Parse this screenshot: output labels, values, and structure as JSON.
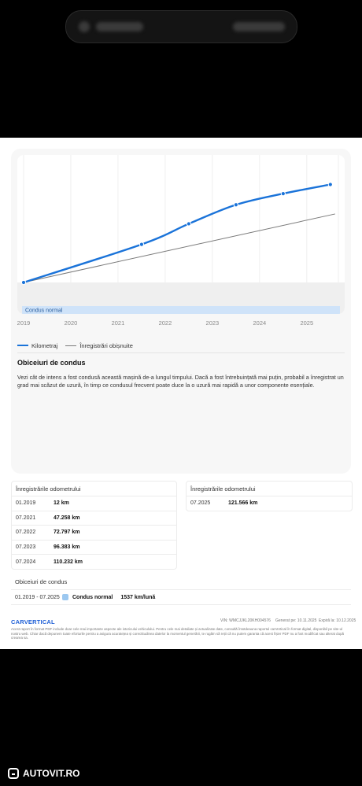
{
  "colors": {
    "mileage_line": "#1a73d9",
    "normal_line": "#7a7a7a",
    "normal_band": "#cfe3f9",
    "band_fill": "#efefef",
    "swatch_normal": "#9cc8f0"
  },
  "icons": {
    "watermark": "autovit-logo-icon"
  },
  "chart_data": {
    "type": "line",
    "x_tick_labels": [
      "2019",
      "2020",
      "2021",
      "2022",
      "2023",
      "2024",
      "2025"
    ],
    "series": [
      {
        "name": "Kilometraj",
        "x": [
          "01.2019",
          "07.2021",
          "07.2022",
          "07.2023",
          "07.2024",
          "07.2025"
        ],
        "y": [
          12,
          47258,
          72797,
          96383,
          110232,
          121566
        ]
      },
      {
        "name": "Înregistrări obișnuite",
        "x": [
          "01.2019",
          "07.2025"
        ],
        "y": [
          0,
          85000
        ]
      }
    ],
    "band_label": "Condus normal",
    "grid": "vertical",
    "legend_position": "bottom-left"
  },
  "driving": {
    "title": "Obiceiuri de condus",
    "text": "Vezi cât de intens a fost condusă această mașină de-a lungul timpului. Dacă a fost întrebuințată mai puțin, probabil a înregistrat un grad mai scăzut de uzură, în timp ce condusul frecvent poate duce la o uzură mai rapidă a unor componente esențiale."
  },
  "odometer_left": {
    "title": "Înregistrările odometrului",
    "rows": [
      {
        "date": "01.2019",
        "km": "12 km"
      },
      {
        "date": "07.2021",
        "km": "47.258 km"
      },
      {
        "date": "07.2022",
        "km": "72.797 km"
      },
      {
        "date": "07.2023",
        "km": "96.383 km"
      },
      {
        "date": "07.2024",
        "km": "110.232 km"
      }
    ]
  },
  "odometer_right": {
    "title": "Înregistrările odometrului",
    "rows": [
      {
        "date": "07.2025",
        "km": "121.566 km"
      }
    ]
  },
  "habits_table": {
    "title": "Obiceiuri de condus",
    "range": "01.2019 - 07.2025",
    "label": "Condus normal",
    "value": "1537 km/lună"
  },
  "footer": {
    "logo": "CARVERTICAL",
    "vin": "VIN: WMCJJKL20KH004576",
    "generated": "Generat pe: 10.11.2025",
    "expires": "Expiră la: 10.12.2025",
    "disclaimer": "Acest raport în format PDF include doar cele mai importante aspecte ale istoricului vehiculului. Pentru cele mai detaliate și actualizate date, consultă întotdeauna raportul carVertical în format digital, disponibil pe site-ul nostru web. Chiar dacă depunem toate eforturile pentru a asigura acuratețea și corectitudinea datelor la momentul generării, te rugăm să reții că nu putem garanta că acest fișier PDF nu a fost modificat sau alterat după crearea sa."
  },
  "watermark": {
    "text": "AUTOVIT.RO"
  }
}
